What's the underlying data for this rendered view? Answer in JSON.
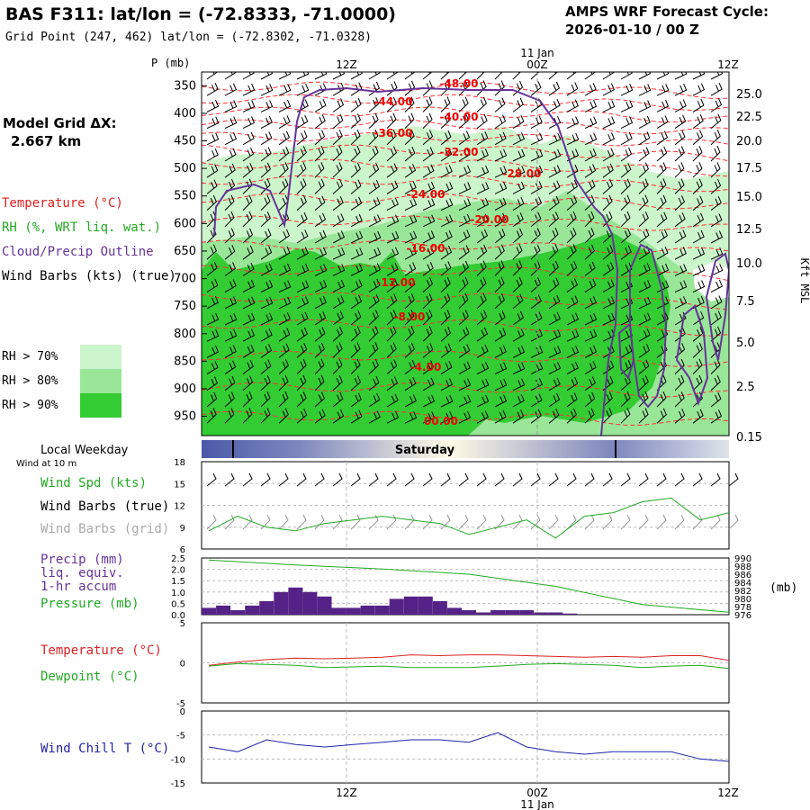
{
  "header": {
    "title": "BAS F311:  lat/lon = (-72.8333, -71.0000)",
    "subtitle": "Grid Point (247, 462) lat/lon = (-72.8302, -71.0328)",
    "cycle_line1": "AMPS WRF Forecast Cycle:",
    "cycle_line2": "2026-01-10 / 00  Z",
    "model_grid_label": "Model Grid ΔX:",
    "model_grid_value": "2.667 km"
  },
  "legend": {
    "temperature": "Temperature (°C)",
    "rh": "RH (%, WRT liq. wat.)",
    "cloud": "Cloud/Precip Outline",
    "wind": "Wind Barbs (kts) (true)",
    "rh70": "RH > 70%",
    "rh80": "RH > 80%",
    "rh90": "RH > 90%"
  },
  "colors": {
    "temperature": "#ff0000",
    "rh70": "#ccf5cc",
    "rh80": "#99e699",
    "rh90": "#33cc33",
    "cloud": "#663399",
    "pressure": "#00aa00",
    "dewpoint": "#00aa00",
    "windchill": "#0000aa",
    "precip": "#552288",
    "weekday_band": "#4a5aa8"
  },
  "time_axis": {
    "top_date": "11 Jan",
    "bottom_date": "11 Jan",
    "ticks": [
      "12Z",
      "00Z",
      "12Z"
    ]
  },
  "weekday": {
    "label": "Local Weekday",
    "day": "Saturday",
    "wind_note": "Wind at 10 m"
  },
  "panel_labels": {
    "wspd": "Wind Spd (kts)",
    "barbs_true": "Wind Barbs (true)",
    "barbs_grid": "Wind Barbs (grid)",
    "precip1": "Precip (mm)",
    "precip2": "liq. equiv.",
    "precip3": "1-hr accum",
    "pressure": "Pressure (mb)",
    "pressure_unit": "(mb)",
    "temperature": "Temperature (°C)",
    "dewpoint": "Dewpoint (°C)",
    "windchill": "Wind Chill T (°C)"
  },
  "chart_data": [
    {
      "type": "area",
      "name": "time-height cross section",
      "ylabel": "P (mb)",
      "y2label": "Kft MSL",
      "p_ticks": [
        350,
        400,
        450,
        500,
        550,
        600,
        650,
        700,
        750,
        800,
        850,
        900,
        950
      ],
      "kft_ticks": [
        "25.0",
        "22.5",
        "20.0",
        "17.5",
        "15.0",
        "12.5",
        "10.0",
        "7.5",
        "5.0",
        "2.5",
        "0.15"
      ],
      "temperature_labels": [
        "-48.00",
        "-44.00",
        "-40.00",
        "-36.00",
        "-32.00",
        "-28.00",
        "-24.00",
        "-20.00",
        "-16.00",
        "-12.00",
        "-8.00",
        "-4.00",
        "00.00"
      ]
    },
    {
      "type": "line",
      "name": "10 m wind speed",
      "ylabel": "Wind Spd (kts)",
      "yticks": [
        18,
        15,
        12,
        9,
        6
      ],
      "ylim": [
        6,
        18
      ],
      "x_hours": [
        0,
        2,
        4,
        6,
        8,
        10,
        12,
        14,
        16,
        18,
        20,
        22,
        24,
        26,
        28,
        30,
        32,
        34,
        36
      ],
      "values": [
        8.5,
        10.5,
        9.0,
        8.5,
        9.5,
        10.0,
        10.5,
        10.0,
        9.5,
        8.0,
        9.0,
        10.0,
        7.5,
        10.5,
        11.0,
        12.5,
        13.0,
        10.0,
        11.0
      ]
    },
    {
      "type": "bar",
      "name": "precip and pressure",
      "ylabel": "Precip (mm)",
      "yticks": [
        "2.5",
        "2.0",
        "1.5",
        "1.0",
        "0.5",
        "0.0"
      ],
      "ylim": [
        0,
        2.5
      ],
      "y2ticks": [
        990,
        988,
        986,
        984,
        982,
        980,
        978,
        976
      ],
      "y2lim": [
        976,
        990
      ],
      "precip_hours": [
        0,
        1,
        2,
        3,
        4,
        5,
        6,
        7,
        8,
        9,
        10,
        11,
        12,
        13,
        14,
        15,
        16,
        17,
        18,
        19,
        20,
        21,
        22,
        23,
        24,
        25
      ],
      "precip_values": [
        0.3,
        0.4,
        0.2,
        0.4,
        0.6,
        1.0,
        1.2,
        1.0,
        0.8,
        0.3,
        0.3,
        0.4,
        0.4,
        0.7,
        0.8,
        0.8,
        0.6,
        0.3,
        0.2,
        0.1,
        0.2,
        0.2,
        0.2,
        0.1,
        0.1,
        0.05
      ],
      "pressure_hours": [
        0,
        6,
        12,
        18,
        24,
        30,
        36
      ],
      "pressure_values": [
        989.5,
        988.3,
        987.3,
        986.0,
        983.0,
        978.5,
        976.6
      ]
    },
    {
      "type": "line",
      "name": "temperature and dewpoint",
      "yticks": [
        5,
        0,
        -5
      ],
      "ylim": [
        -5,
        5
      ],
      "x_hours": [
        0,
        2,
        4,
        6,
        8,
        10,
        12,
        14,
        16,
        18,
        20,
        22,
        24,
        26,
        28,
        30,
        32,
        34,
        36
      ],
      "series": [
        {
          "name": "Temperature (°C)",
          "values": [
            -0.3,
            0.1,
            0.4,
            0.6,
            0.5,
            0.6,
            0.7,
            1.0,
            0.9,
            1.0,
            1.0,
            0.9,
            0.8,
            0.7,
            0.8,
            0.7,
            0.9,
            0.9,
            0.3
          ]
        },
        {
          "name": "Dewpoint (°C)",
          "values": [
            -0.4,
            -0.1,
            -0.2,
            -0.3,
            -0.6,
            -0.5,
            -0.4,
            -0.6,
            -0.6,
            -0.6,
            -0.4,
            -0.2,
            -0.1,
            -0.2,
            -0.3,
            -0.6,
            -0.4,
            -0.3,
            -0.7
          ]
        }
      ]
    },
    {
      "type": "line",
      "name": "wind chill",
      "ylabel": "Wind Chill T (°C)",
      "yticks": [
        0,
        -5,
        -10,
        -15
      ],
      "ylim": [
        -15,
        0
      ],
      "x_hours": [
        0,
        2,
        4,
        6,
        8,
        10,
        12,
        14,
        16,
        18,
        20,
        22,
        24,
        26,
        28,
        30,
        32,
        34,
        36
      ],
      "values": [
        -7.5,
        -8.5,
        -6.0,
        -7.0,
        -7.5,
        -7.0,
        -6.5,
        -6.0,
        -6.0,
        -6.5,
        -4.5,
        -7.5,
        -8.5,
        -9.0,
        -8.5,
        -8.5,
        -8.5,
        -10.0,
        -10.5
      ]
    }
  ]
}
